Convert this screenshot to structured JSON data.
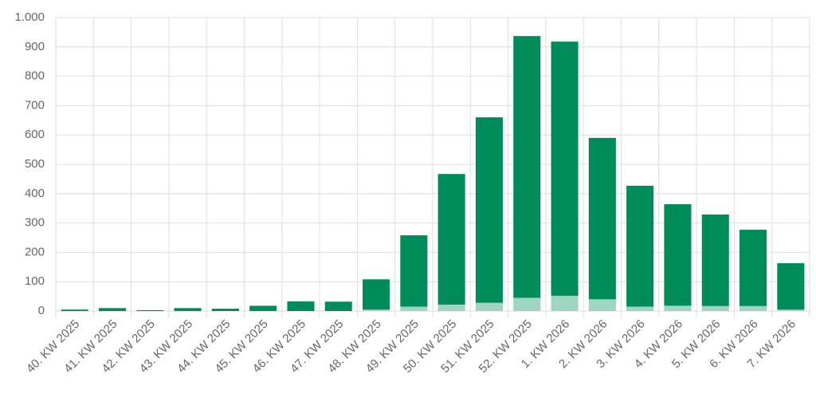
{
  "chart_data": {
    "type": "stacked_bar",
    "categories": [
      "40. KW 2025",
      "41. KW 2025",
      "42. KW 2025",
      "43. KW 2025",
      "44. KW 2025",
      "45. KW 2025",
      "46. KW 2025",
      "47. KW 2025",
      "48. KW 2025",
      "49. KW 2025",
      "50. KW 2025",
      "51. KW 2025",
      "52. KW 2025",
      "1. KW 2026",
      "2. KW 2026",
      "3. KW 2026",
      "4. KW 2026",
      "5. KW 2026",
      "6. KW 2026",
      "7. KW 2026"
    ],
    "series": [
      {
        "color": "#9fd6c1",
        "values": [
          0,
          0,
          0,
          0,
          0,
          0,
          0,
          0,
          5,
          15,
          22,
          28,
          45,
          52,
          40,
          15,
          18,
          17,
          17,
          5
        ]
      },
      {
        "color": "#008c5a",
        "values": [
          5,
          10,
          3,
          10,
          8,
          18,
          33,
          32,
          103,
          243,
          445,
          632,
          892,
          866,
          550,
          412,
          346,
          312,
          260,
          158
        ]
      }
    ],
    "ylim": [
      0,
      1000
    ],
    "yticks": [
      0,
      100,
      200,
      300,
      400,
      500,
      600,
      700,
      800,
      900,
      {
        "value": 1000,
        "label": "1.000"
      }
    ],
    "grid": true
  }
}
